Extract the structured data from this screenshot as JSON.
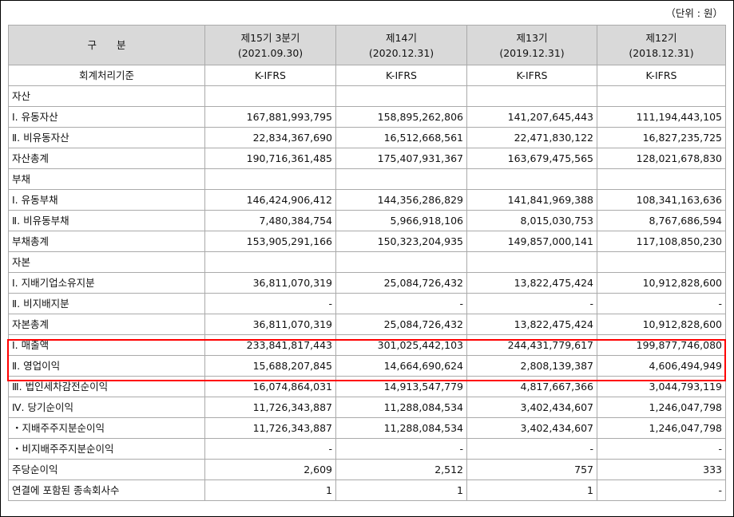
{
  "unit_label": "（단위 : 원）",
  "header": {
    "category": "구　　분",
    "periods": [
      {
        "name": "제15기 3분기",
        "date": "(2021.09.30)"
      },
      {
        "name": "제14기",
        "date": "(2020.12.31)"
      },
      {
        "name": "제13기",
        "date": "(2019.12.31)"
      },
      {
        "name": "제12기",
        "date": "(2018.12.31)"
      }
    ]
  },
  "standard_row": {
    "label": "회계처리기준",
    "values": [
      "K-IFRS",
      "K-IFRS",
      "K-IFRS",
      "K-IFRS"
    ]
  },
  "rows": [
    {
      "kind": "section",
      "label": "자산",
      "values": [
        "",
        "",
        "",
        ""
      ]
    },
    {
      "kind": "item",
      "label": "Ⅰ. 유동자산",
      "values": [
        "167,881,993,795",
        "158,895,262,806",
        "141,207,645,443",
        "111,194,443,105"
      ]
    },
    {
      "kind": "item",
      "label": "Ⅱ. 비유동자산",
      "values": [
        "22,834,367,690",
        "16,512,668,561",
        "22,471,830,122",
        "16,827,235,725"
      ]
    },
    {
      "kind": "total",
      "label": "자산총계",
      "values": [
        "190,716,361,485",
        "175,407,931,367",
        "163,679,475,565",
        "128,021,678,830"
      ]
    },
    {
      "kind": "section",
      "label": "부채",
      "values": [
        "",
        "",
        "",
        ""
      ]
    },
    {
      "kind": "item",
      "label": "Ⅰ. 유동부채",
      "values": [
        "146,424,906,412",
        "144,356,286,829",
        "141,841,969,388",
        "108,341,163,636"
      ]
    },
    {
      "kind": "item",
      "label": "Ⅱ. 비유동부채",
      "values": [
        "7,480,384,754",
        "5,966,918,106",
        "8,015,030,753",
        "8,767,686,594"
      ]
    },
    {
      "kind": "total",
      "label": "부채총계",
      "values": [
        "153,905,291,166",
        "150,323,204,935",
        "149,857,000,141",
        "117,108,850,230"
      ]
    },
    {
      "kind": "section",
      "label": "자본",
      "values": [
        "",
        "",
        "",
        ""
      ]
    },
    {
      "kind": "item",
      "label": "Ⅰ. 지배기업소유지분",
      "values": [
        "36,811,070,319",
        "25,084,726,432",
        "13,822,475,424",
        "10,912,828,600"
      ]
    },
    {
      "kind": "item",
      "label": "Ⅱ. 비지배지분",
      "values": [
        "-",
        "-",
        "-",
        "-"
      ]
    },
    {
      "kind": "total",
      "label": "자본총계",
      "values": [
        "36,811,070,319",
        "25,084,726,432",
        "13,822,475,424",
        "10,912,828,600"
      ]
    },
    {
      "kind": "item",
      "label": "Ⅰ. 매출액",
      "values": [
        "233,841,817,443",
        "301,025,442,103",
        "244,431,779,617",
        "199,877,746,080"
      ]
    },
    {
      "kind": "item",
      "label": "Ⅱ. 영업이익",
      "values": [
        "15,688,207,845",
        "14,664,690,624",
        "2,808,139,387",
        "4,606,494,949"
      ]
    },
    {
      "kind": "item",
      "label": "Ⅲ. 법인세차감전순이익",
      "values": [
        "16,074,864,031",
        "14,913,547,779",
        "4,817,667,366",
        "3,044,793,119"
      ]
    },
    {
      "kind": "item",
      "label": "Ⅳ. 당기순이익",
      "values": [
        "11,726,343,887",
        "11,288,084,534",
        "3,402,434,607",
        "1,246,047,798"
      ]
    },
    {
      "kind": "item",
      "label": "・지배주주지분순이익",
      "values": [
        "11,726,343,887",
        "11,288,084,534",
        "3,402,434,607",
        "1,246,047,798"
      ]
    },
    {
      "kind": "item",
      "label": "・비지배주주지분순이익",
      "values": [
        "-",
        "-",
        "-",
        "-"
      ]
    },
    {
      "kind": "item",
      "label": "주당순이익",
      "values": [
        "2,609",
        "2,512",
        "757",
        "333"
      ]
    },
    {
      "kind": "item",
      "label": "연결에 포함된 종속회사수",
      "values": [
        "1",
        "1",
        "1",
        "-"
      ]
    }
  ],
  "highlight_color": "#ff0000"
}
